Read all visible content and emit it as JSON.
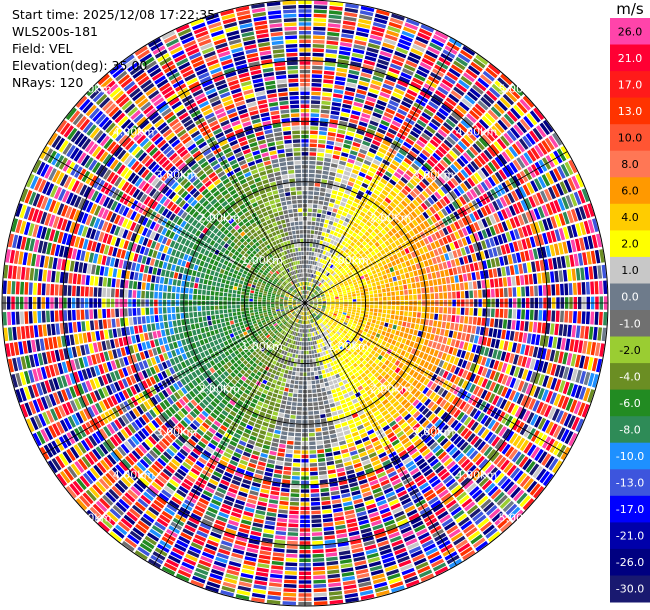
{
  "header": {
    "start_time": "Start time: 2025/12/08 17:22:35",
    "site": "WLS200s-181",
    "field": "Field: VEL",
    "elevation": "Elevation(deg): 35.00",
    "nrays": "NRays: 120"
  },
  "colorbar": {
    "unit": "m/s",
    "levels": [
      {
        "label": "26.0",
        "color": "#ff44aa"
      },
      {
        "label": "21.0",
        "color": "#ff0033"
      },
      {
        "label": "17.0",
        "color": "#ff1a1a"
      },
      {
        "label": "13.0",
        "color": "#ff3300"
      },
      {
        "label": "10.0",
        "color": "#ff5533"
      },
      {
        "label": "8.0",
        "color": "#ff7755"
      },
      {
        "label": "6.0",
        "color": "#ff9900"
      },
      {
        "label": "4.0",
        "color": "#ffcc00"
      },
      {
        "label": "2.0",
        "color": "#ffff00"
      },
      {
        "label": "1.0",
        "color": "#c8c8c8"
      },
      {
        "label": "0.0",
        "color": "#6e7b8b"
      },
      {
        "label": "-1.0",
        "color": "#707070"
      },
      {
        "label": "-2.0",
        "color": "#9acd32"
      },
      {
        "label": "-4.0",
        "color": "#6b8e23"
      },
      {
        "label": "-6.0",
        "color": "#228b22"
      },
      {
        "label": "-8.0",
        "color": "#2e8b57"
      },
      {
        "label": "-10.0",
        "color": "#1e90ff"
      },
      {
        "label": "-13.0",
        "color": "#3d55dd"
      },
      {
        "label": "-17.0",
        "color": "#0000ff"
      },
      {
        "label": "-21.0",
        "color": "#0000aa"
      },
      {
        "label": "-26.0",
        "color": "#000080"
      },
      {
        "label": "-30.0",
        "color": "#191970"
      }
    ]
  },
  "chart_data": {
    "type": "heatmap",
    "projection": "polar PPI",
    "field": "VEL",
    "units": "m/s",
    "nrays": 120,
    "elevation_deg": 35.0,
    "max_range_km": 5.0,
    "range_rings_km": [
      1.0,
      2.0,
      3.0,
      4.0,
      5.0
    ],
    "ring_labels": [
      "1.00km",
      "2.00km",
      "3.00km",
      "4.00km",
      "5.00km"
    ],
    "vmin": -30.0,
    "vmax": 30.0,
    "colorbar_ticks": [
      26.0,
      21.0,
      17.0,
      13.0,
      10.0,
      8.0,
      6.0,
      4.0,
      2.0,
      1.0,
      0.0,
      -1.0,
      -2.0,
      -4.0,
      -6.0,
      -8.0,
      -10.0,
      -13.0,
      -17.0,
      -21.0,
      -26.0,
      -30.0
    ],
    "pattern": "positive radial velocity (yellow/orange, ~2 to 8 m/s) east of site within ~2 km; negative (green/blue, ~-4 to -13 m/s) west within ~2 km; noisy random values beyond ~2.5 km",
    "grid": true
  }
}
